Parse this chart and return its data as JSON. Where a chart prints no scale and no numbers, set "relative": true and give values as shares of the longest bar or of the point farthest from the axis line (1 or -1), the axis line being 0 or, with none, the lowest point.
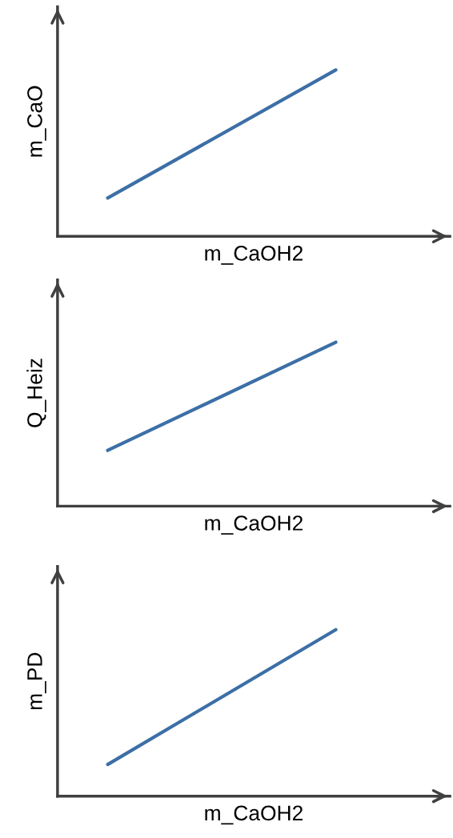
{
  "chart_data": [
    {
      "type": "line",
      "relative": true,
      "categories": [
        null,
        null
      ],
      "xlabel": "m_CaOH2",
      "ylabel": "m_CaO",
      "tick_labels": false,
      "series": [
        {
          "color": "#3c6fa6",
          "values": [
            0.23,
            1
          ]
        }
      ]
    },
    {
      "type": "line",
      "relative": true,
      "categories": [
        null,
        null
      ],
      "xlabel": "m_CaOH2",
      "ylabel": "Q_Heiz",
      "tick_labels": false,
      "series": [
        {
          "color": "#3c6fa6",
          "values": [
            0.34,
            1
          ]
        }
      ]
    },
    {
      "type": "line",
      "relative": true,
      "categories": [
        null,
        null
      ],
      "xlabel": "m_CaOH2",
      "ylabel": "m_PD",
      "tick_labels": false,
      "series": [
        {
          "color": "#3c6fa6",
          "values": [
            0.19,
            1
          ]
        }
      ]
    }
  ]
}
